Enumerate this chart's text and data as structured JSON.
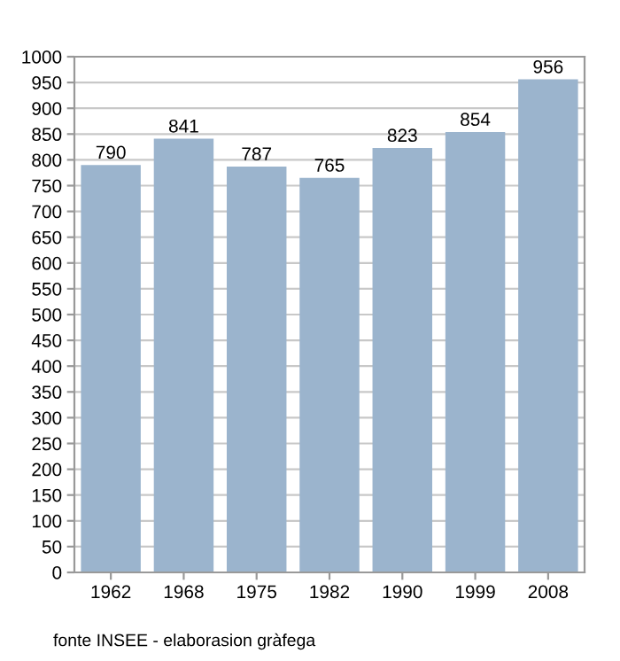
{
  "chart_data": {
    "type": "bar",
    "categories": [
      "1962",
      "1968",
      "1975",
      "1982",
      "1990",
      "1999",
      "2008"
    ],
    "values": [
      790,
      841,
      787,
      765,
      823,
      854,
      956
    ],
    "color": "#9bb4cd",
    "data_labels": true,
    "ylim": [
      0,
      1000
    ],
    "yticks": [
      0,
      50,
      100,
      150,
      200,
      250,
      300,
      350,
      400,
      450,
      500,
      550,
      600,
      650,
      700,
      750,
      800,
      850,
      900,
      950,
      1000
    ],
    "grid": "y",
    "annotations": [
      "fonte INSEE - elaborasion gràfega"
    ]
  }
}
